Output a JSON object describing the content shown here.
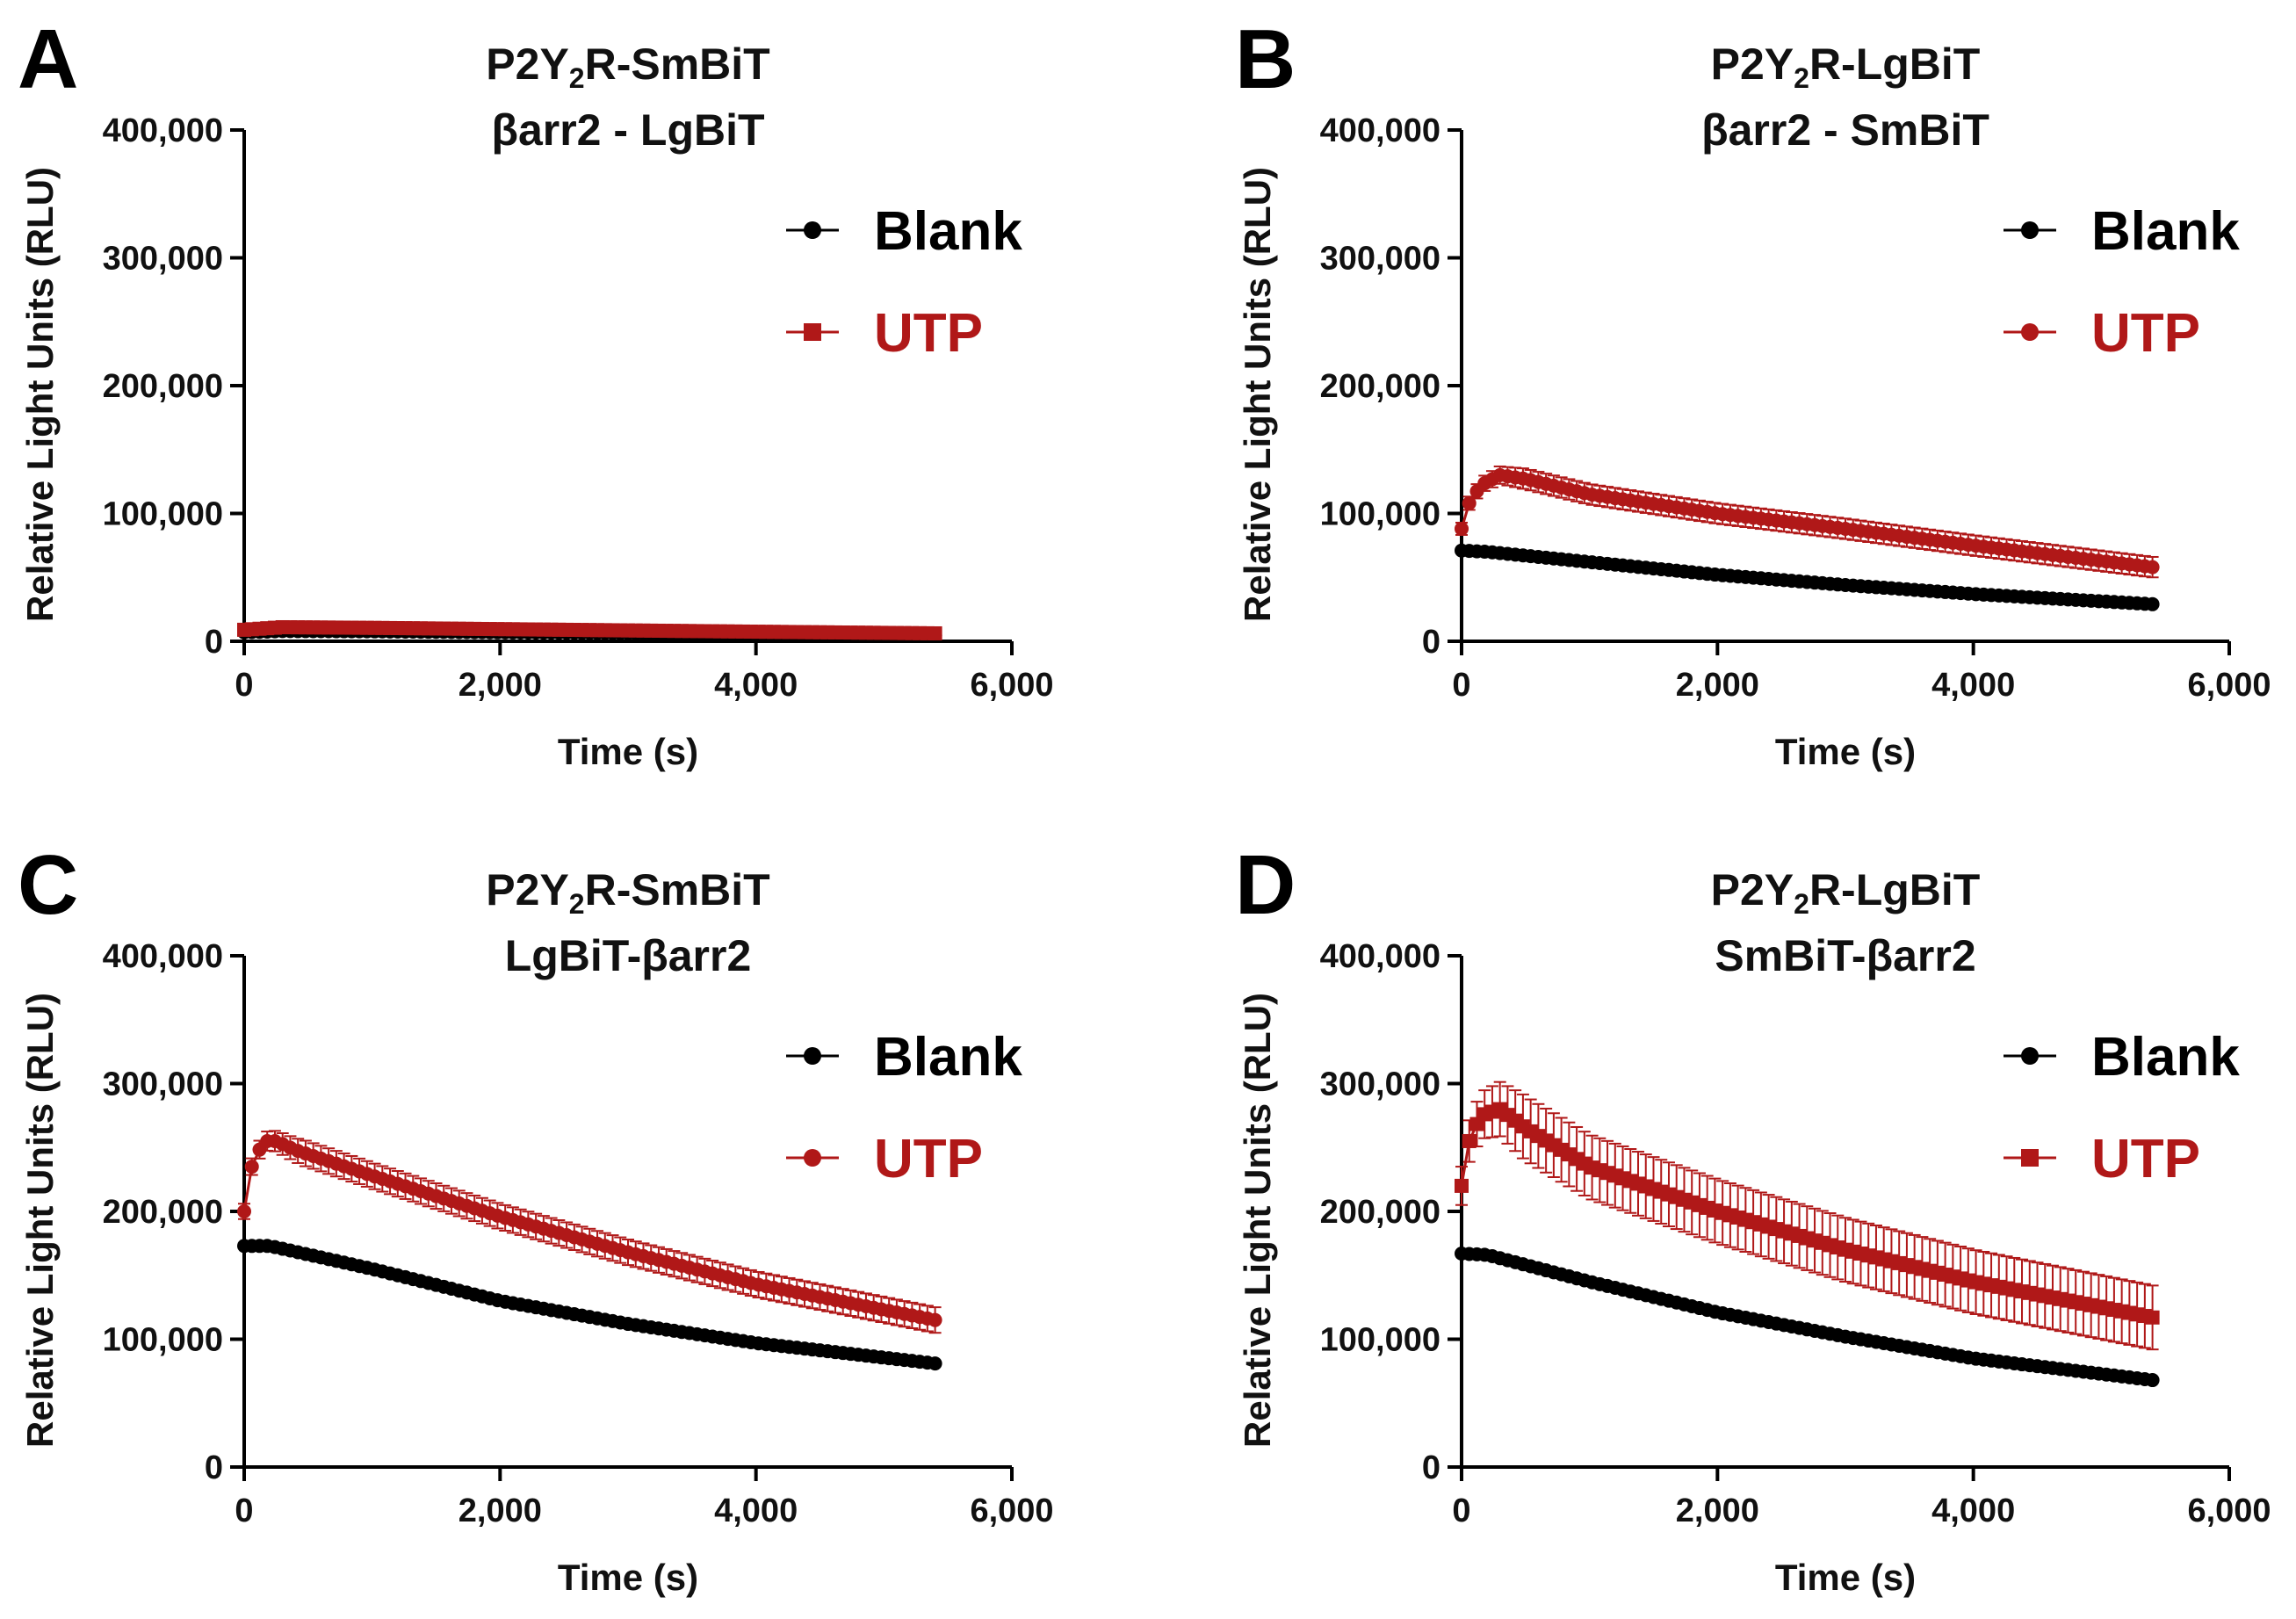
{
  "figure": {
    "colors": {
      "blank": "#000000",
      "utp": "#b01818",
      "axis": "#000000"
    }
  },
  "chart_data": [
    {
      "panel": "A",
      "type": "line",
      "title": {
        "line1_prefix": "P2Y",
        "line1_sub": "2",
        "line1_suffix": "R-SmBiT",
        "line2": "βarr2 - LgBiT"
      },
      "xlabel": "Time (s)",
      "ylabel": "Relative Light Units (RLU)",
      "xlim": [
        0,
        6000
      ],
      "ylim": [
        0,
        400000
      ],
      "xticks": [
        "0",
        "2,000",
        "4,000",
        "6,000"
      ],
      "yticks": [
        "0",
        "100,000",
        "200,000",
        "300,000",
        "400,000"
      ],
      "legend": {
        "position": "top-right",
        "entries": [
          "Blank",
          "UTP"
        ],
        "utp_marker": "square"
      },
      "series": [
        {
          "name": "Blank",
          "color": "#000000",
          "marker": "circle",
          "x_end": 5400,
          "points": [
            [
              0,
              7000
            ],
            [
              300,
              8000
            ],
            [
              1000,
              7800
            ],
            [
              2000,
              7000
            ],
            [
              3000,
              6200
            ],
            [
              4000,
              5500
            ],
            [
              5400,
              4500
            ]
          ],
          "error": 0
        },
        {
          "name": "UTP",
          "color": "#b01818",
          "marker": "square",
          "x_end": 5400,
          "points": [
            [
              0,
              9000
            ],
            [
              300,
              11000
            ],
            [
              1000,
              10500
            ],
            [
              2000,
              9500
            ],
            [
              3000,
              8500
            ],
            [
              4000,
              7500
            ],
            [
              5400,
              6200
            ]
          ],
          "error": 0
        }
      ]
    },
    {
      "panel": "B",
      "type": "line",
      "title": {
        "line1_prefix": "P2Y",
        "line1_sub": "2",
        "line1_suffix": "R-LgBiT",
        "line2": "βarr2 - SmBiT"
      },
      "xlabel": "Time (s)",
      "ylabel": "Relative Light Units (RLU)",
      "xlim": [
        0,
        6000
      ],
      "ylim": [
        0,
        400000
      ],
      "xticks": [
        "0",
        "2,000",
        "4,000",
        "6,000"
      ],
      "yticks": [
        "0",
        "100,000",
        "200,000",
        "300,000",
        "400,000"
      ],
      "legend": {
        "position": "top-right",
        "entries": [
          "Blank",
          "UTP"
        ],
        "utp_marker": "circle"
      },
      "series": [
        {
          "name": "Blank",
          "color": "#000000",
          "marker": "circle",
          "x_end": 5400,
          "points": [
            [
              0,
              71000
            ],
            [
              200,
              70000
            ],
            [
              1000,
              62000
            ],
            [
              2000,
              52000
            ],
            [
              3000,
              44000
            ],
            [
              4000,
              37000
            ],
            [
              5400,
              29000
            ]
          ],
          "error": 0
        },
        {
          "name": "UTP",
          "color": "#b01818",
          "marker": "circle",
          "x_end": 5400,
          "points": [
            [
              0,
              88000
            ],
            [
              60,
              108000
            ],
            [
              150,
              122000
            ],
            [
              300,
              130000
            ],
            [
              500,
              127000
            ],
            [
              1000,
              115000
            ],
            [
              2000,
              100000
            ],
            [
              3000,
              88000
            ],
            [
              4000,
              75000
            ],
            [
              5400,
              58000
            ]
          ],
          "error": 8000
        }
      ]
    },
    {
      "panel": "C",
      "type": "line",
      "title": {
        "line1_prefix": "P2Y",
        "line1_sub": "2",
        "line1_suffix": "R-SmBiT",
        "line2": "LgBiT-βarr2"
      },
      "xlabel": "Time (s)",
      "ylabel": "Relative Light Units (RLU)",
      "xlim": [
        0,
        6000
      ],
      "ylim": [
        0,
        400000
      ],
      "xticks": [
        "0",
        "2,000",
        "4,000",
        "6,000"
      ],
      "yticks": [
        "0",
        "100,000",
        "200,000",
        "300,000",
        "400,000"
      ],
      "legend": {
        "position": "top-right",
        "entries": [
          "Blank",
          "UTP"
        ],
        "utp_marker": "circle"
      },
      "series": [
        {
          "name": "Blank",
          "color": "#000000",
          "marker": "circle",
          "x_end": 5400,
          "points": [
            [
              0,
              173000
            ],
            [
              200,
              173000
            ],
            [
              1000,
              155000
            ],
            [
              2000,
              130000
            ],
            [
              3000,
              112000
            ],
            [
              4000,
              97000
            ],
            [
              5400,
              81000
            ]
          ],
          "error": 0
        },
        {
          "name": "UTP",
          "color": "#b01818",
          "marker": "circle",
          "x_end": 5400,
          "points": [
            [
              0,
              200000
            ],
            [
              60,
              235000
            ],
            [
              150,
              255000
            ],
            [
              250,
              255000
            ],
            [
              400,
              248000
            ],
            [
              1000,
              228000
            ],
            [
              2000,
              196000
            ],
            [
              3000,
              168000
            ],
            [
              4000,
              143000
            ],
            [
              5400,
              115000
            ]
          ],
          "error": 10000
        }
      ]
    },
    {
      "panel": "D",
      "type": "line",
      "title": {
        "line1_prefix": "P2Y",
        "line1_sub": "2",
        "line1_suffix": "R-LgBiT",
        "line2": "SmBiT-βarr2"
      },
      "xlabel": "Time (s)",
      "ylabel": "Relative Light Units (RLU)",
      "xlim": [
        0,
        6000
      ],
      "ylim": [
        0,
        400000
      ],
      "xticks": [
        "0",
        "2,000",
        "4,000",
        "6,000"
      ],
      "yticks": [
        "0",
        "100,000",
        "200,000",
        "300,000",
        "400,000"
      ],
      "legend": {
        "position": "top-right",
        "entries": [
          "Blank",
          "UTP"
        ],
        "utp_marker": "square"
      },
      "series": [
        {
          "name": "Blank",
          "color": "#000000",
          "marker": "circle",
          "x_end": 5400,
          "points": [
            [
              0,
              167000
            ],
            [
              200,
              166000
            ],
            [
              1000,
              145000
            ],
            [
              2000,
              121000
            ],
            [
              3000,
              102000
            ],
            [
              4000,
              85000
            ],
            [
              5400,
              68000
            ]
          ],
          "error": 0
        },
        {
          "name": "UTP",
          "color": "#b01818",
          "marker": "square",
          "x_end": 5400,
          "points": [
            [
              0,
              220000
            ],
            [
              60,
              255000
            ],
            [
              150,
              275000
            ],
            [
              300,
              280000
            ],
            [
              500,
              265000
            ],
            [
              1000,
              235000
            ],
            [
              2000,
              200000
            ],
            [
              3000,
              170000
            ],
            [
              4000,
              145000
            ],
            [
              5400,
              117000
            ]
          ],
          "error": 25000
        }
      ]
    }
  ]
}
